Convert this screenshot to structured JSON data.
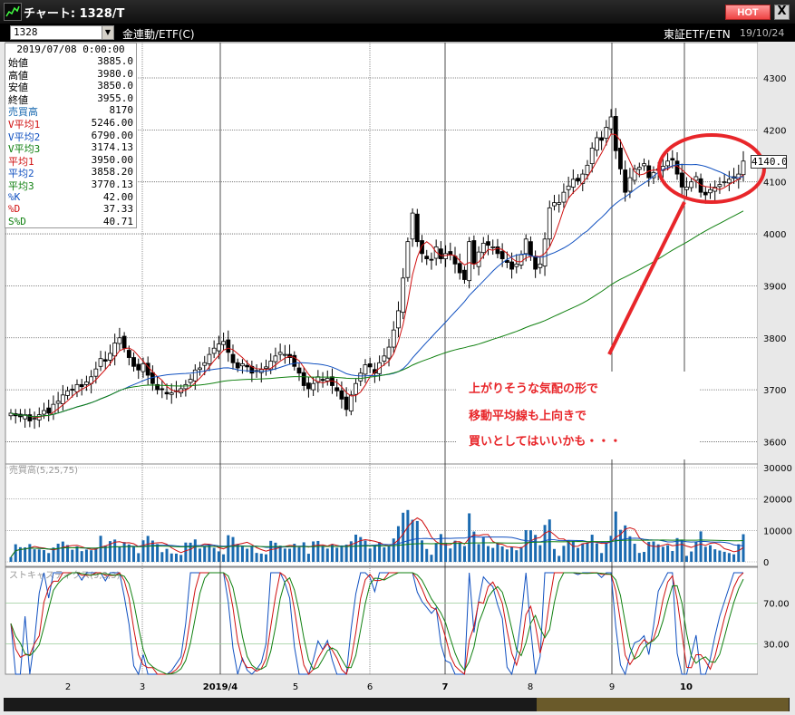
{
  "window": {
    "title": "チャート: 1328/T",
    "hot_label": "HOT",
    "close_label": "X"
  },
  "toolbar": {
    "symbol_code": "1328",
    "symbol_name": "金連動/ETF(C)",
    "market": "東証ETF/ETN",
    "date": "19/10/24"
  },
  "info_panel": {
    "date": "2019/07/08 0:00:00",
    "rows": [
      {
        "label": "始値",
        "value": "3885.0",
        "color": "#000000"
      },
      {
        "label": "高値",
        "value": "3980.0",
        "color": "#000000"
      },
      {
        "label": "安値",
        "value": "3850.0",
        "color": "#000000"
      },
      {
        "label": "終値",
        "value": "3955.0",
        "color": "#000000"
      },
      {
        "label": "売買高",
        "value": "8170",
        "color": "#1a6ab0"
      },
      {
        "label": "V平均1",
        "value": "5246.00",
        "color": "#d01010"
      },
      {
        "label": "V平均2",
        "value": "6790.00",
        "color": "#1050c0"
      },
      {
        "label": "V平均3",
        "value": "3174.13",
        "color": "#108010"
      },
      {
        "label": "平均1",
        "value": "3950.00",
        "color": "#d01010"
      },
      {
        "label": "平均2",
        "value": "3858.20",
        "color": "#1050c0"
      },
      {
        "label": "平均3",
        "value": "3770.13",
        "color": "#108010"
      },
      {
        "label": "%K",
        "value": "42.00",
        "color": "#1050c0"
      },
      {
        "label": "%D",
        "value": "37.33",
        "color": "#d01010"
      },
      {
        "label": "S%D",
        "value": "40.71",
        "color": "#108010"
      }
    ]
  },
  "annotation": {
    "lines": [
      "上がりそうな気配の形で",
      "移動平均線も上向きで",
      "買いとしてはいいかも・・・"
    ],
    "color": "#e8262a"
  },
  "last_price_label": "4140.0",
  "colors": {
    "ma1": "#d01010",
    "ma2": "#1050c0",
    "ma3": "#108010",
    "volume": "#1a6ab0",
    "candle": "#000000"
  },
  "chart_data": [
    {
      "type": "candlestick",
      "title": "",
      "y_ticks": [
        "4300",
        "4200",
        "4100",
        "4000",
        "3900",
        "3800",
        "3700",
        "3600"
      ],
      "ylim": [
        3575,
        4330
      ],
      "x_ticks": [
        "2",
        "3",
        "2019/4",
        "5",
        "6",
        "7",
        "8",
        "9",
        "10"
      ],
      "close": [
        3655,
        3650,
        3648,
        3652,
        3640,
        3645,
        3652,
        3660,
        3655,
        3672,
        3678,
        3690,
        3698,
        3700,
        3710,
        3706,
        3715,
        3725,
        3740,
        3760,
        3755,
        3770,
        3790,
        3800,
        3780,
        3762,
        3745,
        3738,
        3750,
        3728,
        3712,
        3700,
        3700,
        3692,
        3694,
        3698,
        3702,
        3710,
        3720,
        3738,
        3742,
        3752,
        3768,
        3780,
        3788,
        3793,
        3772,
        3752,
        3742,
        3750,
        3744,
        3732,
        3735,
        3739,
        3744,
        3755,
        3765,
        3772,
        3768,
        3762,
        3745,
        3732,
        3708,
        3702,
        3712,
        3725,
        3718,
        3722,
        3708,
        3698,
        3682,
        3662,
        3690,
        3712,
        3732,
        3748,
        3744,
        3732,
        3752,
        3765,
        3782,
        3815,
        3852,
        3915,
        3985,
        4040,
        3985,
        3962,
        3952,
        3950,
        3975,
        3952,
        3962,
        3960,
        3942,
        3925,
        3912,
        3985,
        3942,
        3965,
        3982,
        3978,
        3975,
        3962,
        3952,
        3945,
        3932,
        3942,
        3960,
        3990,
        3958,
        3932,
        3942,
        3990,
        4050,
        4060,
        4060,
        4080,
        4092,
        4105,
        4102,
        4115,
        4132,
        4165,
        4185,
        4180,
        4205,
        4225,
        4160,
        4125,
        4080,
        4108,
        4125,
        4128,
        4135,
        4108,
        4118,
        4125,
        4130,
        4140,
        4142,
        4115,
        4090,
        4090,
        4100,
        4110,
        4080,
        4075,
        4085,
        4090,
        4095,
        4100,
        4105,
        4110,
        4115,
        4140
      ]
    },
    {
      "type": "bar",
      "title": "売買高(5,25,75)",
      "y_ticks": [
        "30000",
        "20000",
        "10000",
        "0"
      ],
      "ylim": [
        0,
        30000
      ]
    },
    {
      "type": "line",
      "title": "ストキャスティクス(9,3,3)",
      "y_ticks": [
        "70.00",
        "30.00"
      ],
      "ylim": [
        0,
        100
      ]
    }
  ]
}
